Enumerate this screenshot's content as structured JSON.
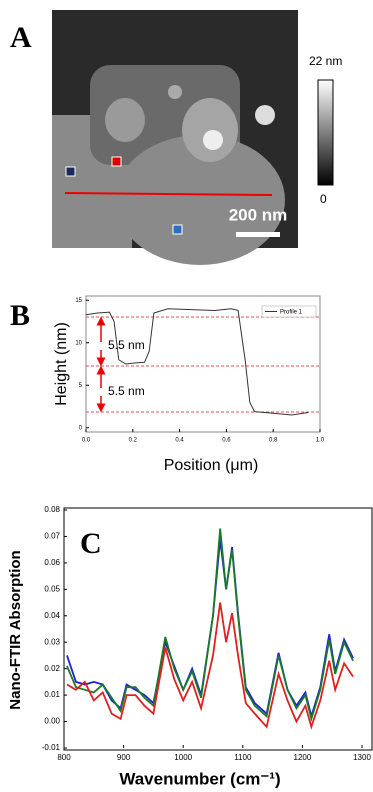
{
  "chart_data": [
    {
      "type": "image",
      "panel_label": "A",
      "colorbar_max_label": "22 nm",
      "colorbar_min_label": "0",
      "scale_bar_label": "200 nm"
    },
    {
      "type": "line",
      "panel_label": "B",
      "x_label": "Position (μm)",
      "y_label": "Height (nm)",
      "annotations": [
        "5.5 nm",
        "5.5 nm"
      ],
      "x": [
        0,
        0.05,
        0.1,
        0.12,
        0.14,
        0.17,
        0.2,
        0.25,
        0.27,
        0.29,
        0.35,
        0.45,
        0.55,
        0.62,
        0.65,
        0.68,
        0.7,
        0.72,
        0.8,
        0.88,
        0.95
      ],
      "series": [
        {
          "name": "Profile 1",
          "color": "#333333",
          "values": [
            13.3,
            13.5,
            13.6,
            12.5,
            8,
            7.5,
            7.6,
            7.7,
            9,
            13.5,
            14,
            13.9,
            13.8,
            14,
            13.8,
            8,
            3,
            1.9,
            1.7,
            1.5,
            1.8
          ]
        }
      ],
      "xlim": [
        0,
        1
      ],
      "xticks": [
        {
          "value": 0,
          "label": "0.0"
        },
        0.2,
        0.4,
        0.6,
        0.8,
        {
          "value": 1,
          "label": "1.0"
        }
      ],
      "ylim": [
        -0.5,
        15.5
      ],
      "yticks": [
        0,
        5,
        10,
        15
      ]
    },
    {
      "type": "line",
      "panel_label": "C",
      "x_label": "Wavenumber (cm⁻¹)",
      "y_label": "Nano-FTIR Absorption",
      "x": [
        805,
        820,
        835,
        850,
        865,
        880,
        895,
        905,
        920,
        935,
        950,
        970,
        985,
        1000,
        1015,
        1030,
        1050,
        1062,
        1072,
        1082,
        1092,
        1105,
        1120,
        1140,
        1160,
        1175,
        1190,
        1205,
        1215,
        1230,
        1245,
        1255,
        1270,
        1285
      ],
      "series": [
        {
          "color": "#1f1fd6",
          "values": [
            0.025,
            0.015,
            0.014,
            0.015,
            0.014,
            0.008,
            0.005,
            0.014,
            0.012,
            0.01,
            0.007,
            0.03,
            0.021,
            0.012,
            0.02,
            0.01,
            0.04,
            0.069,
            0.05,
            0.066,
            0.041,
            0.013,
            0.007,
            0.003,
            0.026,
            0.012,
            0.006,
            0.011,
            0.002,
            0.013,
            0.033,
            0.019,
            0.031,
            0.024
          ]
        },
        {
          "color": "#1a7a2a",
          "values": [
            0.021,
            0.013,
            0.012,
            0.011,
            0.014,
            0.009,
            0.004,
            0.013,
            0.013,
            0.009,
            0.006,
            0.032,
            0.02,
            0.012,
            0.019,
            0.009,
            0.04,
            0.073,
            0.05,
            0.065,
            0.04,
            0.012,
            0.006,
            0.002,
            0.025,
            0.012,
            0.005,
            0.01,
            0.001,
            0.012,
            0.031,
            0.018,
            0.03,
            0.023
          ]
        },
        {
          "color": "#e02020",
          "values": [
            0.014,
            0.012,
            0.015,
            0.008,
            0.011,
            0.003,
            0.001,
            0.01,
            0.01,
            0.006,
            0.003,
            0.028,
            0.016,
            0.008,
            0.015,
            0.005,
            0.025,
            0.045,
            0.03,
            0.041,
            0.025,
            0.007,
            0.003,
            -0.002,
            0.018,
            0.008,
            0.0,
            0.006,
            -0.002,
            0.008,
            0.023,
            0.012,
            0.022,
            0.017
          ]
        }
      ],
      "xlim": [
        800,
        1300
      ],
      "xticks": [
        800,
        900,
        1000,
        1100,
        1200,
        1300
      ],
      "ylim": [
        -0.01,
        0.08
      ],
      "yticks": [
        -0.01,
        {
          "value": 0,
          "label": "0.00"
        },
        0.01,
        0.02,
        0.03,
        0.04,
        0.05,
        0.06,
        0.07,
        0.08
      ]
    }
  ]
}
